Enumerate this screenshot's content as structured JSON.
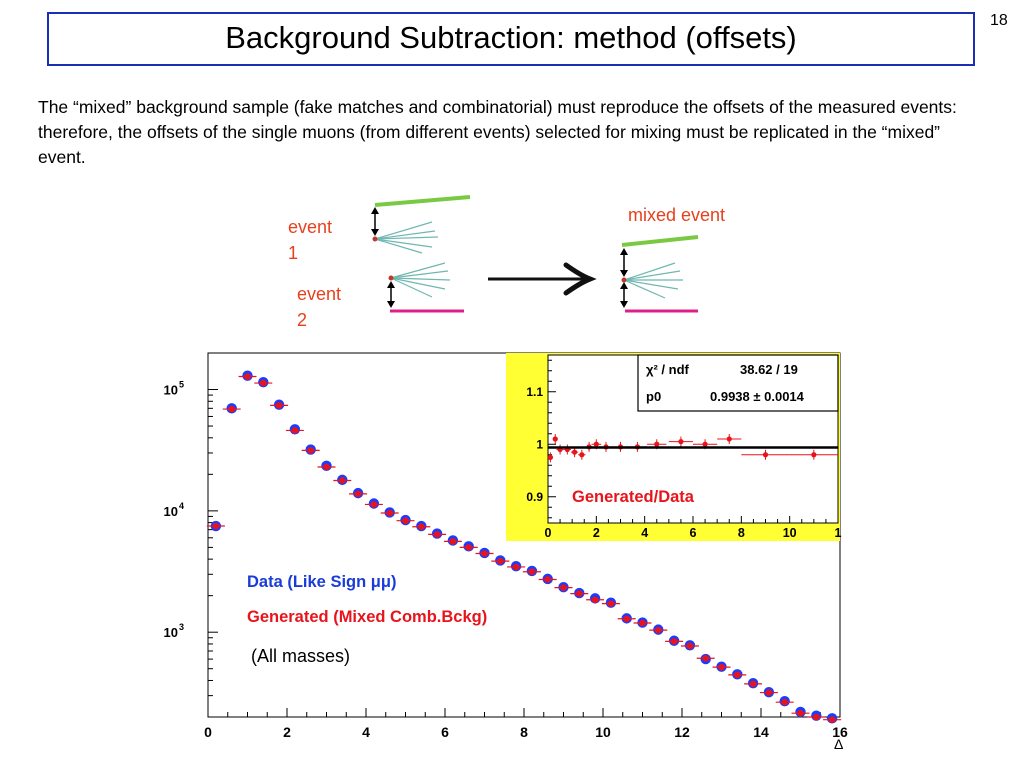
{
  "slide": {
    "title": "Background Subtraction: method (offsets)",
    "page_number": "18",
    "body": "The “mixed” background sample (fake matches and combinatorial) must reproduce the offsets of the measured events: therefore, the offsets of the single muons (from different events) selected for mixing must be replicated in the “mixed” event."
  },
  "diagram": {
    "event1_label_line1": "event",
    "event1_label_line2": "1",
    "event2_label_line1": "event",
    "event2_label_line2": "2",
    "mixed_label": "mixed event",
    "colors": {
      "label": "#e8401c",
      "green_track": "#7ac943",
      "magenta_track": "#e0208a",
      "fan": "#6fb7b0",
      "vertex": "#c0392b"
    }
  },
  "main_plot": {
    "legend_data": "Data (Like Sign μμ)",
    "legend_generated": "Generated (Mixed Comb.Bckg)",
    "annotation": "(All masses)",
    "x_axis_label": "Δ",
    "x_ticks": [
      "0",
      "2",
      "4",
      "6",
      "8",
      "10",
      "12",
      "14",
      "16"
    ],
    "y_tick_labels": [
      {
        "base": "10",
        "exp": "5"
      },
      {
        "base": "10",
        "exp": "4"
      },
      {
        "base": "10",
        "exp": "3"
      }
    ],
    "colors": {
      "data": "#1a3cff",
      "generated": "#e8141c",
      "legend_data": "#1a3cd8",
      "legend_generated": "#e8141c"
    }
  },
  "inset_plot": {
    "fit_box_label1": "χ² / ndf",
    "fit_box_value1": "38.62 / 19",
    "fit_box_label2": "p0",
    "fit_box_value2": "0.9938 ± 0.0014",
    "label": "Generated/Data",
    "x_ticks": [
      "0",
      "2",
      "4",
      "6",
      "8",
      "10",
      "1"
    ],
    "y_ticks": [
      "1.1",
      "1",
      "0.9"
    ],
    "colors": {
      "background": "#ffff33",
      "points": "#e8141c",
      "label": "#e8141c",
      "fit": "#000000"
    }
  },
  "chart_data": [
    {
      "type": "scatter",
      "title": "",
      "xlabel": "Δ",
      "ylabel": "",
      "xlim": [
        0,
        16
      ],
      "ylim": [
        200,
        200000
      ],
      "yscale": "log",
      "legend_placement": "lower-left",
      "x": [
        0.2,
        0.6,
        1.0,
        1.4,
        1.8,
        2.2,
        2.6,
        3.0,
        3.4,
        3.8,
        4.2,
        4.6,
        5.0,
        5.4,
        5.8,
        6.2,
        6.6,
        7.0,
        7.4,
        7.8,
        8.2,
        8.6,
        9.0,
        9.4,
        9.8,
        10.2,
        10.6,
        11.0,
        11.4,
        11.8,
        12.2,
        12.6,
        13.0,
        13.4,
        13.8,
        14.2,
        14.6,
        15.0,
        15.4,
        15.8
      ],
      "series": [
        {
          "name": "Data (Like Sign μμ)",
          "values": [
            7500,
            70000,
            130000,
            115000,
            75000,
            47000,
            32000,
            23500,
            18000,
            14000,
            11500,
            9700,
            8400,
            7500,
            6500,
            5700,
            5100,
            4500,
            3900,
            3500,
            3200,
            2750,
            2350,
            2100,
            1900,
            1750,
            1300,
            1200,
            1050,
            850,
            780,
            600,
            520,
            450,
            380,
            320,
            270,
            220,
            205,
            195
          ]
        },
        {
          "name": "Generated (Mixed Comb.Bckg)",
          "values": [
            7500,
            69000,
            128000,
            113000,
            74000,
            46000,
            31500,
            23000,
            17800,
            13800,
            11300,
            9600,
            8300,
            7400,
            6400,
            5600,
            5000,
            4450,
            3850,
            3450,
            3150,
            2720,
            2330,
            2080,
            1850,
            1720,
            1290,
            1190,
            1040,
            840,
            770,
            610,
            515,
            445,
            375,
            318,
            265,
            215,
            200,
            190
          ]
        }
      ]
    },
    {
      "type": "scatter",
      "title": "",
      "xlabel": "",
      "ylabel": "",
      "xlim": [
        0,
        12
      ],
      "ylim": [
        0.85,
        1.17
      ],
      "x": [
        0.1,
        0.3,
        0.5,
        0.8,
        1.1,
        1.4,
        1.7,
        2.0,
        2.4,
        3.0,
        3.7,
        4.5,
        5.5,
        6.5,
        7.5,
        9.0,
        11.0
      ],
      "series": [
        {
          "name": "Generated/Data",
          "values": [
            0.975,
            1.01,
            0.99,
            0.99,
            0.985,
            0.98,
            0.995,
            1.0,
            0.995,
            0.995,
            0.995,
            1.0,
            1.005,
            1.0,
            1.01,
            0.98,
            0.98
          ]
        }
      ],
      "fit": {
        "p0": 0.9938
      }
    }
  ]
}
